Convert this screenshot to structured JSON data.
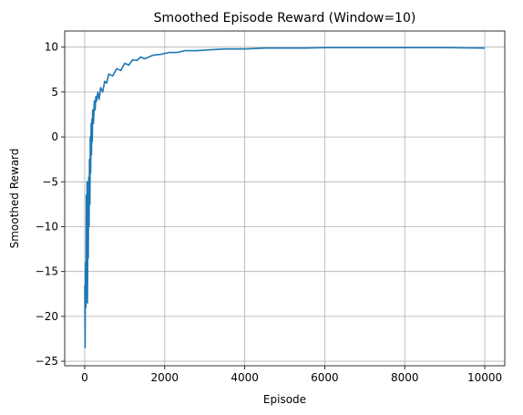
{
  "chart_data": {
    "type": "line",
    "title": "Smoothed Episode Reward (Window=10)",
    "xlabel": "Episode",
    "ylabel": "Smoothed Reward",
    "xlim": [
      -500,
      10500
    ],
    "ylim": [
      -25.5,
      11.8
    ],
    "xticks": [
      0,
      2000,
      4000,
      6000,
      8000,
      10000
    ],
    "yticks": [
      -25,
      -20,
      -15,
      -10,
      -5,
      0,
      5,
      10
    ],
    "grid": true,
    "series_color": "#1f77b4",
    "series": [
      {
        "x": [
          0,
          10,
          20,
          30,
          40,
          50,
          60,
          70,
          80,
          90,
          100,
          110,
          120,
          130,
          140,
          150,
          160,
          170,
          180,
          190,
          200,
          220,
          240,
          260,
          280,
          300,
          330,
          360,
          400,
          450,
          500,
          550,
          600,
          700,
          800,
          900,
          1000,
          1100,
          1200,
          1300,
          1400,
          1500,
          1700,
          1900,
          2100,
          2300,
          2500,
          2800,
          3100,
          3500,
          4000,
          4500,
          5000,
          5500,
          6000,
          7000,
          8000,
          9000,
          10000
        ],
        "y": [
          -16.5,
          -23.5,
          -14.0,
          -19.0,
          -6.5,
          -12.0,
          -5.0,
          -18.5,
          -8.0,
          -13.5,
          -4.5,
          -10.0,
          -2.5,
          -7.5,
          0.0,
          -4.0,
          1.5,
          -2.0,
          2.0,
          -0.5,
          3.0,
          1.5,
          4.0,
          3.0,
          4.5,
          4.0,
          5.0,
          4.2,
          5.5,
          5.0,
          6.2,
          6.0,
          7.0,
          6.8,
          7.6,
          7.4,
          8.2,
          8.0,
          8.6,
          8.5,
          8.9,
          8.7,
          9.1,
          9.2,
          9.4,
          9.4,
          9.6,
          9.6,
          9.7,
          9.8,
          9.8,
          9.9,
          9.9,
          9.9,
          9.95,
          9.95,
          9.95,
          9.95,
          9.9
        ]
      }
    ]
  }
}
